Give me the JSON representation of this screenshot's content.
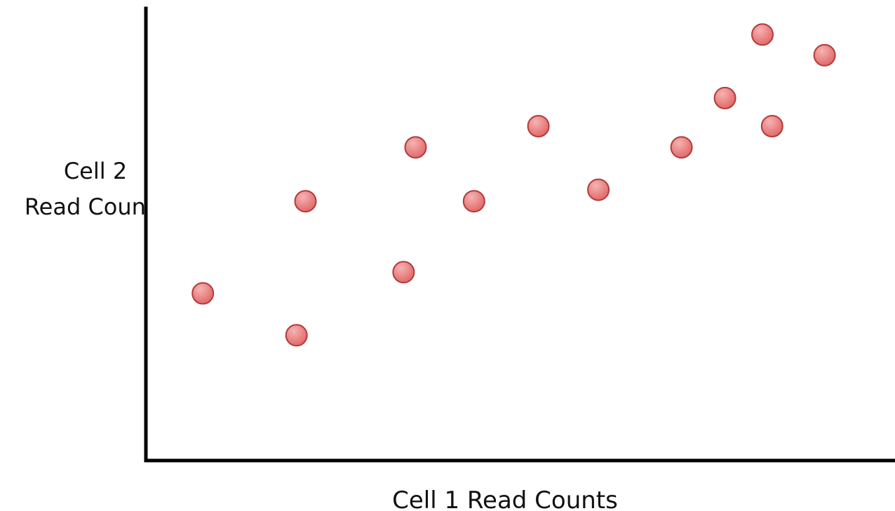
{
  "chart_data": {
    "type": "scatter",
    "title": "",
    "xlabel": "Cell 1 Read Counts",
    "ylabel_lines": [
      "Cell 2",
      "Read Counts"
    ],
    "xlim": [
      0,
      100
    ],
    "ylim": [
      0,
      100
    ],
    "grid": false,
    "legend": "none",
    "x_ticks": [],
    "y_ticks": [],
    "colors": {
      "point_fill": "#e06464",
      "point_highlight": "#f6b3b3",
      "point_stroke": "#b33a3a",
      "axis": "#000000"
    },
    "series": [
      {
        "points": [
          {
            "x": 7.6,
            "y": 36.3
          },
          {
            "x": 20.1,
            "y": 27.2
          },
          {
            "x": 21.3,
            "y": 56.3
          },
          {
            "x": 34.4,
            "y": 40.9
          },
          {
            "x": 36.0,
            "y": 68.0
          },
          {
            "x": 43.8,
            "y": 56.3
          },
          {
            "x": 52.4,
            "y": 72.6
          },
          {
            "x": 60.4,
            "y": 58.8
          },
          {
            "x": 71.5,
            "y": 68.0
          },
          {
            "x": 77.3,
            "y": 78.7
          },
          {
            "x": 82.3,
            "y": 92.5
          },
          {
            "x": 83.6,
            "y": 72.6
          },
          {
            "x": 90.6,
            "y": 88.0
          }
        ]
      }
    ]
  }
}
